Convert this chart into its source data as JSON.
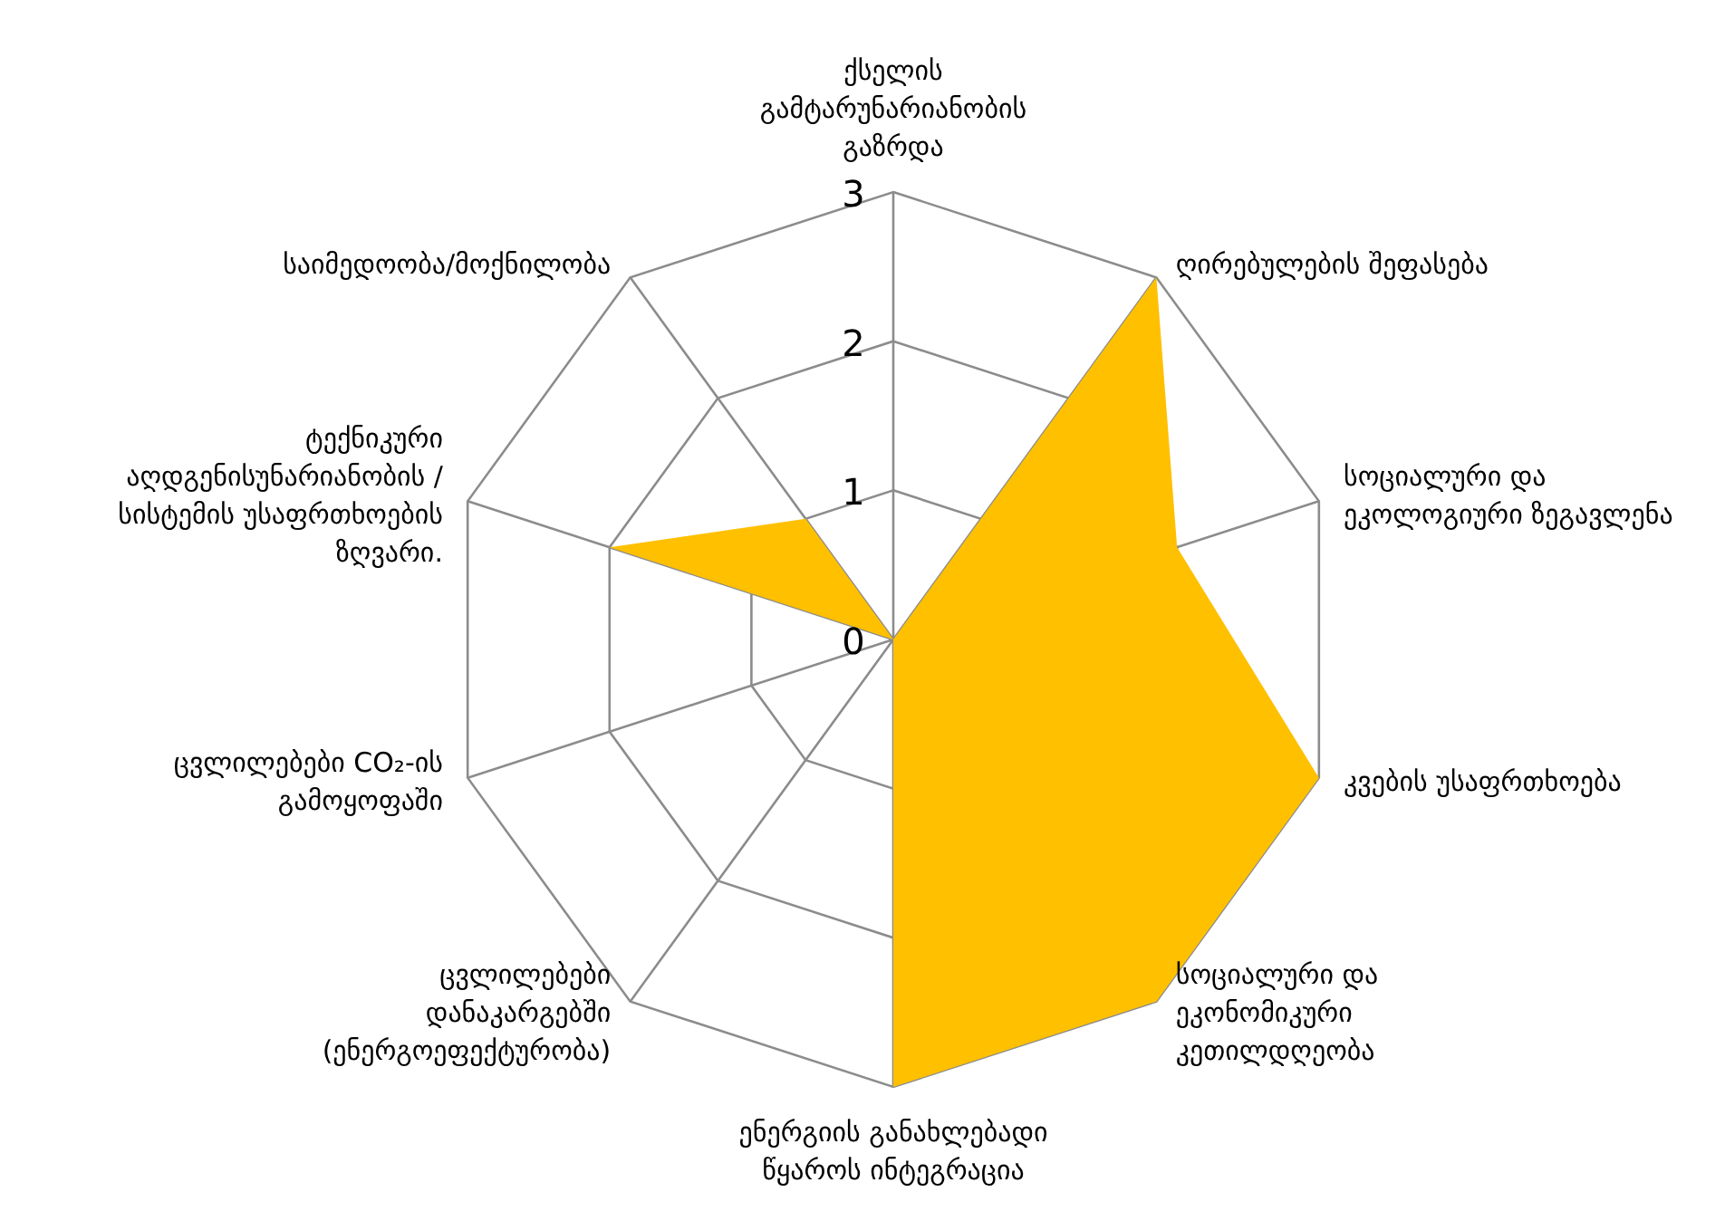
{
  "chart_data": {
    "type": "radar",
    "categories": [
      "ქსელის გამტარუნარიანობის გაზრდა",
      "ღირებულების შეფასება",
      "სოციალური და ეკოლოგიური ზეგავლენა",
      "კვების უსაფრთხოება",
      "სოციალური და ეკონომიკური კეთილდღეობა",
      "ენერგიის განახლებადი წყაროს ინტეგრაცია",
      "ცვლილებები დანაკარგებში (ენერგოეფექტურობა)",
      "ცვლილებები CO₂-ის გამოყოფაში",
      "ტექნიკური აღდგენისუნარიანობის / სისტემის უსაფრთხოების ზღვარი.",
      "საიმედოობა/მოქნილობა"
    ],
    "series": [
      {
        "color": "#ffc000",
        "values": [
          0,
          3,
          2,
          3,
          3,
          3,
          0,
          0,
          2,
          1
        ]
      }
    ],
    "ylim": [
      0,
      3
    ],
    "yticks": [
      0,
      1,
      2,
      3
    ],
    "grid": true,
    "legend": false
  }
}
